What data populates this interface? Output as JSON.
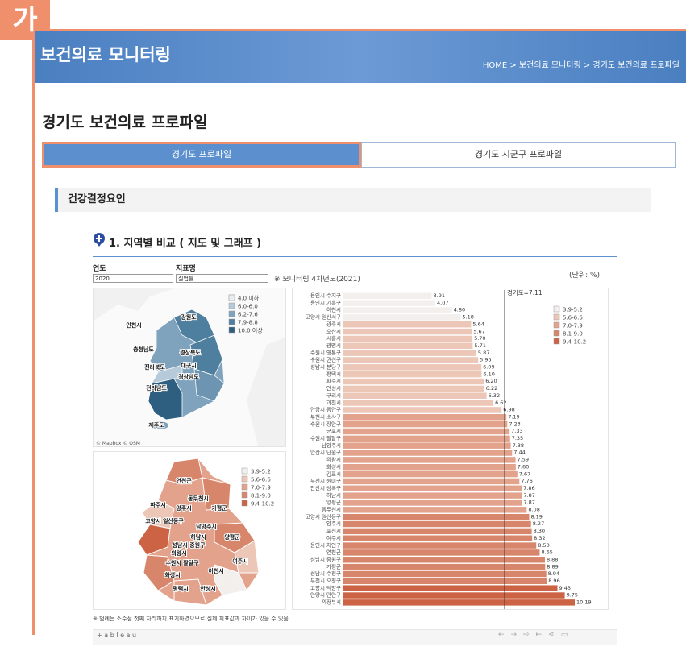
{
  "badge": "가",
  "header": {
    "title": "보건의료 모니터링",
    "breadcrumb": "HOME > 보건의료 모니터링 > 경기도 보건의료 프로파일"
  },
  "page_title": "경기도 보건의료 프로파일",
  "tabs": [
    "경기도 프로파일",
    "경기도 시군구 프로파일"
  ],
  "section": "건강결정요인",
  "subsection": "1. 지역별 비교 ( 지도 및 그래프 )",
  "filters": {
    "year_label": "연도",
    "year": "2020",
    "indicator_label": "지표명",
    "indicator": "실업률",
    "note": "※ 모니터링 4차년도(2021)"
  },
  "unit": "(단위: %)",
  "korea_map": {
    "attribution": "© Mapbox © OSM",
    "legend": [
      {
        "label": "4.0 이하",
        "color": "#e9edf1"
      },
      {
        "label": "6.0-6.0",
        "color": "#b7cad9"
      },
      {
        "label": "6.2-7.6",
        "color": "#7fa3bd"
      },
      {
        "label": "7.9-8.8",
        "color": "#4f7f9f"
      },
      {
        "label": "10.0 이상",
        "color": "#2f5f80"
      }
    ],
    "labels": [
      "강원도",
      "인천시",
      "충청남도",
      "경상북도",
      "대구시",
      "전라북도",
      "경상남도",
      "전라남도",
      "제주도"
    ]
  },
  "gyeonggi_map": {
    "legend": [
      {
        "label": "3.9-5.2",
        "color": "#f3efed"
      },
      {
        "label": "5.6-6.6",
        "color": "#ecc6b6"
      },
      {
        "label": "7.0-7.9",
        "color": "#e2a28b"
      },
      {
        "label": "8.1-9.0",
        "color": "#d8866b"
      },
      {
        "label": "9.4-10.2",
        "color": "#cc6344"
      }
    ],
    "labels": [
      "연천군",
      "동두천시",
      "파주시",
      "양주시",
      "가평군",
      "고양시 일산동구",
      "남양주시",
      "하남시",
      "양평군",
      "성남시 중원구",
      "의왕시",
      "수원시 팔달구",
      "화성시",
      "여주시",
      "이천시",
      "평택시",
      "안성시"
    ]
  },
  "bar_chart": {
    "type": "bar",
    "categories": [
      "용인시 수지구",
      "용인시 기흥구",
      "이천시",
      "고양시 일산서구",
      "광주시",
      "오산시",
      "시흥시",
      "광명시",
      "수원시 영통구",
      "수원시 권선구",
      "성남시 분당구",
      "평택시",
      "파주시",
      "안성시",
      "구리시",
      "과천시",
      "안양시 동안구",
      "부천시 소사구",
      "수원시 장안구",
      "군포시",
      "수원시 팔달구",
      "남양주시",
      "안산시 단원구",
      "의왕시",
      "화성시",
      "김포시",
      "부천시 원미구",
      "안산시 상록구",
      "하남시",
      "양평군",
      "동두천시",
      "고양시 일산동구",
      "양주시",
      "포천시",
      "여주시",
      "용인시 처인구",
      "연천군",
      "성남시 중원구",
      "가평군",
      "성남시 수정구",
      "부천시 오정구",
      "고양시 덕양구",
      "안양시 만안구",
      "의정부시"
    ],
    "values": [
      3.91,
      4.07,
      4.8,
      5.18,
      5.64,
      5.67,
      5.7,
      5.71,
      5.87,
      5.95,
      6.09,
      6.1,
      6.2,
      6.22,
      6.32,
      6.62,
      6.98,
      7.19,
      7.23,
      7.33,
      7.35,
      7.38,
      7.44,
      7.59,
      7.6,
      7.67,
      7.76,
      7.86,
      7.87,
      7.87,
      8.08,
      8.19,
      8.27,
      8.3,
      8.32,
      8.5,
      8.65,
      8.88,
      8.89,
      8.94,
      8.96,
      9.43,
      9.75,
      10.19
    ],
    "value_labels": [
      "3.91",
      "4.07",
      "4.80",
      "5.18",
      "5.64",
      "5.67",
      "5.70",
      "5.71",
      "5.87",
      "5.95",
      "6.09",
      "6.10",
      "6.20",
      "6.22",
      "6.32",
      "6.62",
      "6.98",
      "7.19",
      "7.23",
      "7.33",
      "7.35",
      "7.38",
      "7.44",
      "7.59",
      "7.60",
      "7.67",
      "7.76",
      "7.86",
      "7.87",
      "7.87",
      "8.08",
      "8.19",
      "8.27",
      "8.30",
      "8.32",
      "8.50",
      "8.65",
      "8.88",
      "8.89",
      "8.94",
      "8.96",
      "9.43",
      "9.75",
      "10.19"
    ],
    "reference": {
      "label": "경기도=7.11",
      "value": 7.11
    },
    "legend": [
      {
        "label": "3.9-5.2",
        "color": "#f3efed"
      },
      {
        "label": "5.6-6.6",
        "color": "#ecc6b6"
      },
      {
        "label": "7.0-7.9",
        "color": "#e2a28b"
      },
      {
        "label": "8.1-9.0",
        "color": "#d8866b"
      },
      {
        "label": "9.4-10.2",
        "color": "#cc6344"
      }
    ]
  },
  "footnote": "※ 범례는 소수점 첫째 자리까지 표기하였으므로 실제 지표값과 차이가 있을 수 있음",
  "tableau": "+ a b l e a u"
}
